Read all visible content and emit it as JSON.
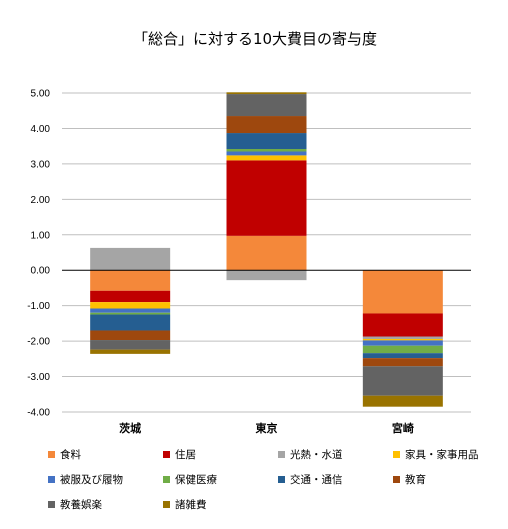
{
  "chart_data": {
    "type": "bar",
    "stacked": true,
    "title": "「総合」に対する10大費目の寄与度",
    "categories": [
      "茨城",
      "東京",
      "宮崎"
    ],
    "ylim": [
      -4.0,
      5.0
    ],
    "yticks": [
      "5.00",
      "4.00",
      "3.00",
      "2.00",
      "1.00",
      "0.00",
      "-1.00",
      "-2.00",
      "-3.00",
      "-4.00"
    ],
    "grid": true,
    "legend_position": "bottom",
    "series": [
      {
        "name": "食料",
        "color": "#F4883A",
        "values": [
          -0.58,
          0.97,
          -1.22
        ]
      },
      {
        "name": "住居",
        "color": "#C00000",
        "values": [
          -0.32,
          2.13,
          -0.65
        ]
      },
      {
        "name": "光熱・水道",
        "color": "#A5A5A5",
        "values": [
          0.63,
          -0.28,
          -0.07
        ]
      },
      {
        "name": "家具・家事用品",
        "color": "#FFC000",
        "values": [
          -0.18,
          0.14,
          -0.04
        ]
      },
      {
        "name": "被服及び履物",
        "color": "#4472C4",
        "values": [
          -0.12,
          0.11,
          -0.15
        ]
      },
      {
        "name": "保健医療",
        "color": "#70AD47",
        "values": [
          -0.05,
          0.07,
          -0.21
        ]
      },
      {
        "name": "交通・通信",
        "color": "#255E91",
        "values": [
          -0.45,
          0.45,
          -0.14
        ]
      },
      {
        "name": "教育",
        "color": "#9E480E",
        "values": [
          -0.27,
          0.48,
          -0.23
        ]
      },
      {
        "name": "教養娯楽",
        "color": "#636363",
        "values": [
          -0.27,
          0.62,
          -0.83
        ]
      },
      {
        "name": "諸雑費",
        "color": "#997300",
        "values": [
          -0.12,
          0.05,
          -0.31
        ]
      }
    ]
  }
}
